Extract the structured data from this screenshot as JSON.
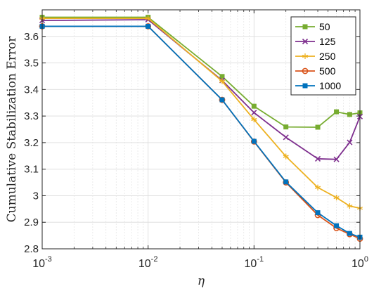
{
  "chart_data": {
    "type": "line",
    "title": "",
    "xlabel": "η",
    "ylabel": "Cumulative Stabilization Error",
    "xscale": "log",
    "xlim": [
      0.001,
      1
    ],
    "ylim": [
      2.8,
      3.7
    ],
    "grid": true,
    "legend_position": "top-right",
    "x_ticks": [
      0.001,
      0.01,
      0.1,
      1
    ],
    "x_tick_labels": [
      {
        "base": "10",
        "exp": "-3"
      },
      {
        "base": "10",
        "exp": "-2"
      },
      {
        "base": "10",
        "exp": "-1"
      },
      {
        "base": "10",
        "exp": "0"
      }
    ],
    "y_ticks": [
      2.8,
      2.9,
      3.0,
      3.1,
      3.2,
      3.3,
      3.4,
      3.5,
      3.6
    ],
    "y_tick_labels": [
      "2.8",
      "2.9",
      "3",
      "3.1",
      "3.2",
      "3.3",
      "3.4",
      "3.5",
      "3.6"
    ],
    "x": [
      0.001,
      0.01,
      0.05,
      0.1,
      0.2,
      0.4,
      0.6,
      0.8,
      1.0
    ],
    "series": [
      {
        "name": "50",
        "color": "#77ac30",
        "marker": "square",
        "values": [
          3.672,
          3.672,
          3.449,
          3.337,
          3.259,
          3.258,
          3.316,
          3.306,
          3.312
        ]
      },
      {
        "name": "125",
        "color": "#7e2f8e",
        "marker": "x",
        "values": [
          3.66,
          3.663,
          3.434,
          3.313,
          3.22,
          3.139,
          3.137,
          3.201,
          3.298
        ]
      },
      {
        "name": "250",
        "color": "#edb120",
        "marker": "star",
        "values": [
          3.668,
          3.668,
          3.431,
          3.287,
          3.148,
          3.031,
          2.993,
          2.961,
          2.953
        ]
      },
      {
        "name": "500",
        "color": "#d95319",
        "marker": "circle",
        "values": [
          3.638,
          3.638,
          3.361,
          3.204,
          3.05,
          2.927,
          2.878,
          2.855,
          2.838
        ]
      },
      {
        "name": "1000",
        "color": "#0072bd",
        "marker": "square",
        "values": [
          3.638,
          3.638,
          3.361,
          3.205,
          3.052,
          2.936,
          2.887,
          2.858,
          2.844
        ]
      }
    ]
  }
}
